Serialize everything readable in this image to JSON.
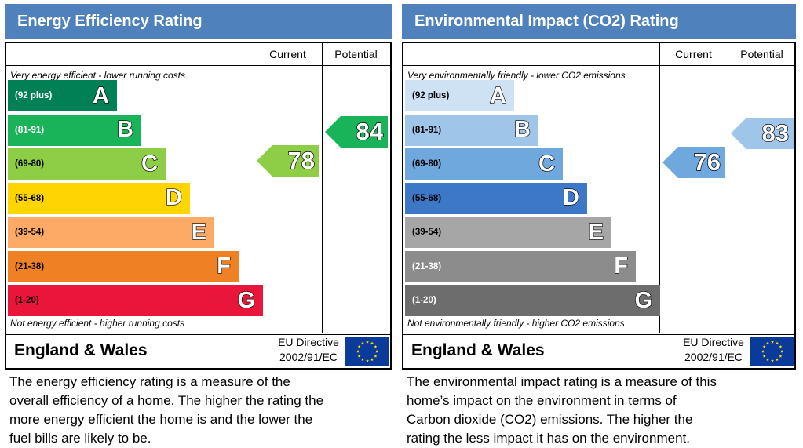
{
  "chart_data": [
    {
      "type": "rating_chart",
      "title": "Energy Efficiency Rating",
      "columns": [
        "Current",
        "Potential"
      ],
      "top_caption": "Very energy efficient - lower running costs",
      "bottom_caption": "Not energy efficient - higher running costs",
      "bands": [
        {
          "letter": "A",
          "range": "(92 plus)",
          "color": "#008054",
          "text_color": "#ffffff"
        },
        {
          "letter": "B",
          "range": "(81-91)",
          "color": "#19b459",
          "text_color": "#ffffff"
        },
        {
          "letter": "C",
          "range": "(69-80)",
          "color": "#8dce46",
          "text_color": "#000000"
        },
        {
          "letter": "D",
          "range": "(55-68)",
          "color": "#ffd500",
          "text_color": "#000000"
        },
        {
          "letter": "E",
          "range": "(39-54)",
          "color": "#fcaa65",
          "text_color": "#000000"
        },
        {
          "letter": "F",
          "range": "(21-38)",
          "color": "#ef8023",
          "text_color": "#000000"
        },
        {
          "letter": "G",
          "range": "(1-20)",
          "color": "#e9153b",
          "text_color": "#000000"
        }
      ],
      "current": {
        "value": 78,
        "band": "C",
        "color": "#8dce46"
      },
      "potential": {
        "value": 84,
        "band": "B",
        "color": "#19b459"
      },
      "footer_region": "England & Wales",
      "eu_directive_line1": "EU Directive",
      "eu_directive_line2": "2002/91/EC",
      "description": "The energy efficiency rating is a measure of the\noverall efficiency of a home. The higher the rating the\nmore energy efficient the home is and the lower the\nfuel bills are likely to be."
    },
    {
      "type": "rating_chart",
      "title": "Environmental Impact (CO2) Rating",
      "columns": [
        "Current",
        "Potential"
      ],
      "top_caption": "Very environmentally friendly - lower CO2 emissions",
      "bottom_caption": "Not environmentally friendly - higher CO2 emissions",
      "bands": [
        {
          "letter": "A",
          "range": "(92 plus)",
          "color": "#cfe2f3",
          "text_color": "#000000"
        },
        {
          "letter": "B",
          "range": "(81-91)",
          "color": "#9fc5e8",
          "text_color": "#000000"
        },
        {
          "letter": "C",
          "range": "(69-80)",
          "color": "#6fa8dc",
          "text_color": "#000000"
        },
        {
          "letter": "D",
          "range": "(55-68)",
          "color": "#3d78c6",
          "text_color": "#000000"
        },
        {
          "letter": "E",
          "range": "(39-54)",
          "color": "#a6a6a6",
          "text_color": "#000000"
        },
        {
          "letter": "F",
          "range": "(21-38)",
          "color": "#8c8c8c",
          "text_color": "#ffffff"
        },
        {
          "letter": "G",
          "range": "(1-20)",
          "color": "#6d6d6d",
          "text_color": "#ffffff"
        }
      ],
      "current": {
        "value": 76,
        "band": "C",
        "color": "#6fa8dc"
      },
      "potential": {
        "value": 83,
        "band": "B",
        "color": "#9fc5e8"
      },
      "footer_region": "England & Wales",
      "eu_directive_line1": "EU Directive",
      "eu_directive_line2": "2002/91/EC",
      "description": "The environmental impact rating is a measure of this\nhome’s impact on the environment in terms of\nCarbon dioxide (CO2) emissions. The higher the\nrating the less impact it has on the environment."
    }
  ]
}
